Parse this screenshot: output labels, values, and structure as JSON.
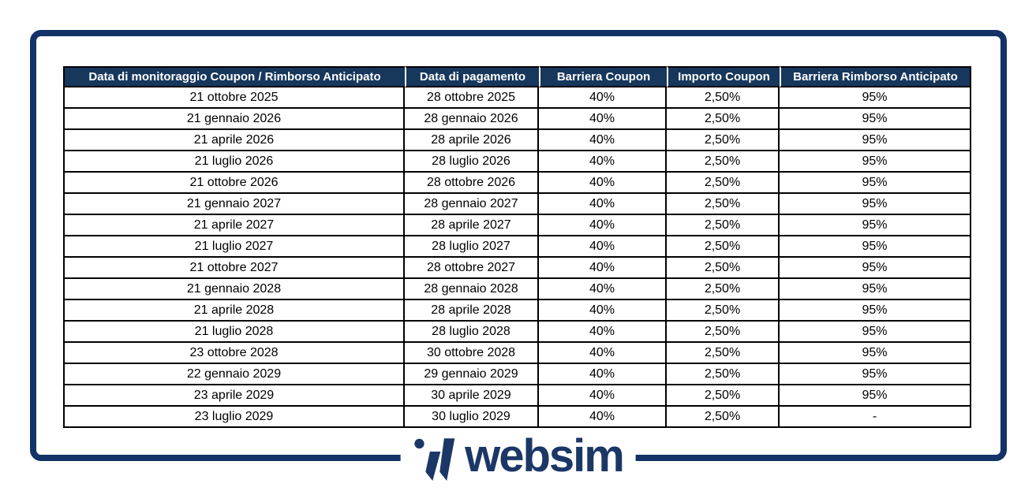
{
  "frame": {
    "border_color": "#133268"
  },
  "table": {
    "header_bg": "#17375D",
    "header_text_color": "#FFFFFF",
    "cell_border_color": "#000000",
    "columns": [
      {
        "label": "Data di monitoraggio Coupon / Rimborso Anticipato"
      },
      {
        "label": "Data di pagamento"
      },
      {
        "label": "Barriera Coupon"
      },
      {
        "label": "Importo Coupon"
      },
      {
        "label": "Barriera Rimborso Anticipato"
      }
    ],
    "rows": [
      [
        "21 ottobre 2025",
        "28 ottobre 2025",
        "40%",
        "2,50%",
        "95%"
      ],
      [
        "21 gennaio 2026",
        "28 gennaio 2026",
        "40%",
        "2,50%",
        "95%"
      ],
      [
        "21 aprile 2026",
        "28 aprile 2026",
        "40%",
        "2,50%",
        "95%"
      ],
      [
        "21 luglio 2026",
        "28 luglio 2026",
        "40%",
        "2,50%",
        "95%"
      ],
      [
        "21 ottobre 2026",
        "28 ottobre 2026",
        "40%",
        "2,50%",
        "95%"
      ],
      [
        "21 gennaio 2027",
        "28 gennaio 2027",
        "40%",
        "2,50%",
        "95%"
      ],
      [
        "21 aprile 2027",
        "28 aprile 2027",
        "40%",
        "2,50%",
        "95%"
      ],
      [
        "21 luglio 2027",
        "28 luglio 2027",
        "40%",
        "2,50%",
        "95%"
      ],
      [
        "21 ottobre 2027",
        "28 ottobre 2027",
        "40%",
        "2,50%",
        "95%"
      ],
      [
        "21 gennaio 2028",
        "28 gennaio 2028",
        "40%",
        "2,50%",
        "95%"
      ],
      [
        "21 aprile 2028",
        "28 aprile 2028",
        "40%",
        "2,50%",
        "95%"
      ],
      [
        "21 luglio 2028",
        "28 luglio 2028",
        "40%",
        "2,50%",
        "95%"
      ],
      [
        "23 ottobre 2028",
        "30 ottobre 2028",
        "40%",
        "2,50%",
        "95%"
      ],
      [
        "22 gennaio 2029",
        "29 gennaio 2029",
        "40%",
        "2,50%",
        "95%"
      ],
      [
        "23 aprile 2029",
        "30 aprile 2029",
        "40%",
        "2,50%",
        "95%"
      ],
      [
        "23 luglio 2029",
        "30 luglio 2029",
        "40%",
        "2,50%",
        "-"
      ]
    ]
  },
  "chart_data": {
    "type": "table",
    "title": "",
    "columns": [
      "Data di monitoraggio Coupon / Rimborso Anticipato",
      "Data di pagamento",
      "Barriera Coupon",
      "Importo Coupon",
      "Barriera Rimborso Anticipato"
    ],
    "barriera_coupon_constant": "40%",
    "importo_coupon_constant": "2,50%",
    "barriera_rimborso_constant": "95%",
    "last_row_barriera_rimborso": "-"
  },
  "logo": {
    "text": "websim",
    "color": "#1B3766"
  }
}
